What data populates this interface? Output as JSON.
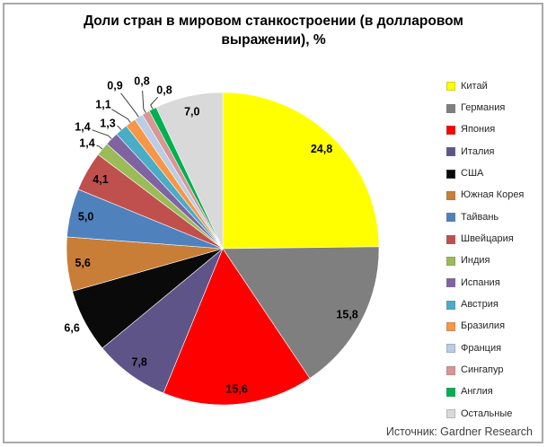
{
  "chart_data": {
    "type": "pie",
    "title": "Доли стран в мировом станкостроении (в долларовом выражении), %",
    "title_lines": [
      "Доли стран в мировом станкостроении (в долларовом",
      "выражении), %"
    ],
    "source": "Источник: Gardner Research",
    "legend_position": "right",
    "start_angle_deg": 0,
    "direction": "clockwise",
    "decimal_separator": ",",
    "total": 100.0,
    "slices": [
      {
        "label": "Китай",
        "value": 24.8,
        "display": "24,8",
        "color": "#FFFF00",
        "label_placement": "inside"
      },
      {
        "label": "Германия",
        "value": 15.8,
        "display": "15,8",
        "color": "#7F7F7F",
        "label_placement": "inside"
      },
      {
        "label": "Япония",
        "value": 15.6,
        "display": "15,6",
        "color": "#FF0000",
        "label_placement": "inside"
      },
      {
        "label": "Италия",
        "value": 7.8,
        "display": "7,8",
        "color": "#5F5487",
        "label_placement": "inside"
      },
      {
        "label": "США",
        "value": 6.6,
        "display": "6,6",
        "color": "#0A0A0A",
        "label_placement": "outside"
      },
      {
        "label": "Южная Корея",
        "value": 5.6,
        "display": "5,6",
        "color": "#C87E37",
        "label_placement": "inside"
      },
      {
        "label": "Тайвань",
        "value": 5.0,
        "display": "5,0",
        "color": "#4F81BD",
        "label_placement": "inside"
      },
      {
        "label": "Швейцария",
        "value": 4.1,
        "display": "4,1",
        "color": "#C0504D",
        "label_placement": "inside"
      },
      {
        "label": "Индия",
        "value": 1.4,
        "display": "1,4",
        "color": "#9BBB59",
        "label_placement": "callout"
      },
      {
        "label": "Испания",
        "value": 1.4,
        "display": "1,4",
        "color": "#8064A2",
        "label_placement": "callout"
      },
      {
        "label": "Австрия",
        "value": 1.3,
        "display": "1,3",
        "color": "#4BACC6",
        "label_placement": "callout"
      },
      {
        "label": "Бразилия",
        "value": 1.1,
        "display": "1,1",
        "color": "#F79646",
        "label_placement": "callout"
      },
      {
        "label": "Франция",
        "value": 0.9,
        "display": "0,9",
        "color": "#B9CDE5",
        "label_placement": "callout"
      },
      {
        "label": "Сингапур",
        "value": 0.8,
        "display": "0,8",
        "color": "#D99694",
        "label_placement": "callout"
      },
      {
        "label": "Англия",
        "value": 0.8,
        "display": "0,8",
        "color": "#00B050",
        "label_placement": "callout"
      },
      {
        "label": "Остальные",
        "value": 7.0,
        "display": "7,0",
        "color": "#D9D9D9",
        "label_placement": "inside"
      }
    ]
  }
}
